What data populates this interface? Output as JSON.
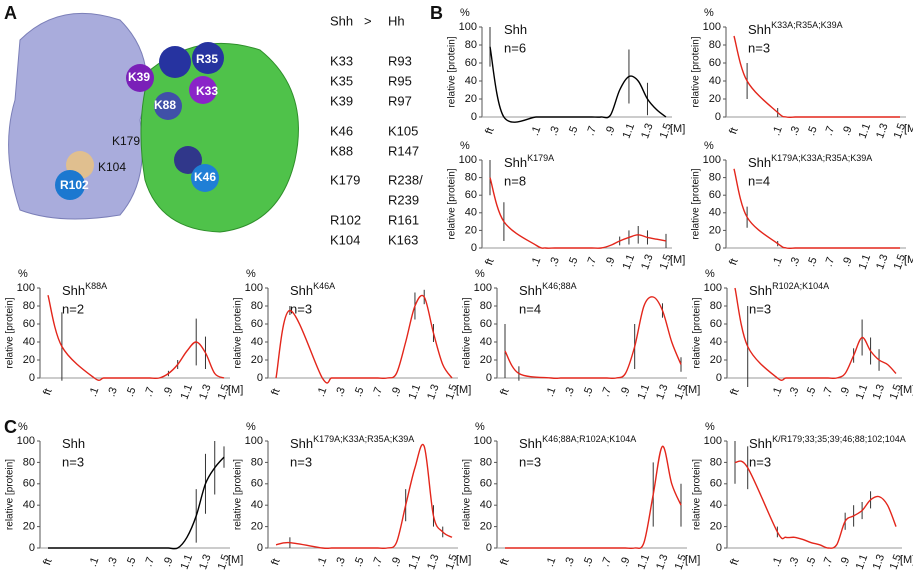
{
  "panel_labels": [
    "A",
    "B",
    "C"
  ],
  "structure_labels": [
    "K39",
    "R35",
    "K33",
    "K88",
    "K179",
    "K104",
    "R102",
    "K46"
  ],
  "residue_table": {
    "header": [
      "Shh",
      ">",
      "Hh"
    ],
    "rows": [
      [
        "K33",
        "R93"
      ],
      [
        "K35",
        "R95"
      ],
      [
        "K39",
        "R97"
      ],
      [
        "K46",
        "K105"
      ],
      [
        "K88",
        "R147"
      ],
      [
        "K179",
        [
          "R238/",
          "R239"
        ]
      ],
      [
        "R102",
        "R161"
      ],
      [
        "K104",
        "K163"
      ]
    ]
  },
  "chart_data": [
    {
      "type": "line",
      "title": "Shh",
      "annotation": "n=6",
      "ylabel": "relative [protein]",
      "yunit": "%",
      "xunit": "[M]",
      "color": "#000000",
      "categories": [
        "ft",
        null,
        ".1",
        null,
        ".3",
        null,
        ".5",
        null,
        ".7",
        null,
        ".9",
        null,
        "1.1",
        null,
        "1.3",
        null,
        "1.5"
      ],
      "values": [
        78,
        0,
        0,
        0,
        0,
        0,
        0,
        0,
        0,
        0,
        2,
        30,
        45,
        40,
        20,
        8,
        0
      ],
      "errors": [
        22,
        null,
        null,
        null,
        null,
        null,
        null,
        null,
        null,
        null,
        null,
        null,
        30,
        null,
        18,
        null,
        null
      ],
      "ylim": [
        0,
        100
      ],
      "yticks": [
        0,
        20,
        40,
        60,
        80,
        100
      ]
    },
    {
      "type": "line",
      "title": "Shh",
      "title_sup": "K33A;R35A;K39A",
      "annotation": "n=3",
      "ylabel": "relative [protein]",
      "yunit": "%",
      "xunit": "[M]",
      "color": "#e3261b",
      "categories": [
        "ft",
        null,
        ".1",
        null,
        ".3",
        null,
        ".5",
        null,
        ".7",
        null,
        ".9",
        null,
        "1.1",
        null,
        "1.3",
        null,
        "1.5"
      ],
      "values": [
        90,
        40,
        5,
        0,
        0,
        0,
        0,
        0,
        0,
        0,
        0,
        0,
        0,
        0,
        0,
        0,
        0
      ],
      "errors": [
        null,
        20,
        5,
        null,
        null,
        null,
        null,
        null,
        null,
        null,
        null,
        null,
        null,
        null,
        null,
        null,
        null
      ],
      "ylim": [
        0,
        100
      ],
      "yticks": [
        0,
        20,
        40,
        60,
        80,
        100
      ]
    },
    {
      "type": "line",
      "title": "Shh",
      "title_sup": "K179A",
      "annotation": "n=8",
      "ylabel": "relative [protein]",
      "yunit": "%",
      "xunit": "[M]",
      "color": "#e3261b",
      "categories": [
        "ft",
        null,
        ".1",
        null,
        ".3",
        null,
        ".5",
        null,
        ".7",
        null,
        ".9",
        null,
        "1.1",
        null,
        "1.3",
        null,
        "1.5"
      ],
      "values": [
        80,
        30,
        3,
        0,
        0,
        0,
        0,
        0,
        0,
        0,
        3,
        8,
        12,
        15,
        12,
        10,
        8
      ],
      "errors": [
        20,
        22,
        null,
        null,
        null,
        null,
        null,
        null,
        null,
        null,
        null,
        5,
        8,
        10,
        8,
        null,
        8
      ],
      "ylim": [
        0,
        100
      ],
      "yticks": [
        0,
        20,
        40,
        60,
        80,
        100
      ]
    },
    {
      "type": "line",
      "title": "Shh",
      "title_sup": "K179A;K33A;R35A;K39A",
      "annotation": "n=4",
      "ylabel": "relative [protein]",
      "yunit": "%",
      "xunit": "[M]",
      "color": "#e3261b",
      "categories": [
        "ft",
        null,
        ".1",
        null,
        ".3",
        null,
        ".5",
        null,
        ".7",
        null,
        ".9",
        null,
        "1.1",
        null,
        "1.3",
        null,
        "1.5"
      ],
      "values": [
        90,
        35,
        5,
        0,
        0,
        0,
        0,
        0,
        0,
        0,
        0,
        0,
        0,
        0,
        0,
        0,
        0
      ],
      "errors": [
        null,
        12,
        3,
        null,
        null,
        null,
        null,
        null,
        null,
        null,
        null,
        null,
        null,
        null,
        null,
        null,
        null
      ],
      "ylim": [
        0,
        100
      ],
      "yticks": [
        0,
        20,
        40,
        60,
        80,
        100
      ]
    },
    {
      "type": "line",
      "title": "Shh",
      "title_sup": "K88A",
      "annotation": "n=2",
      "ylabel": "relative [protein]",
      "yunit": "%",
      "xunit": "[M]",
      "color": "#e3261b",
      "categories": [
        "ft",
        null,
        ".1",
        null,
        ".3",
        null,
        ".5",
        null,
        ".7",
        null,
        ".9",
        null,
        "1.1",
        null,
        "1.3",
        null,
        "1.5"
      ],
      "values": [
        92,
        35,
        0,
        0,
        0,
        0,
        0,
        0,
        0,
        0,
        5,
        15,
        30,
        40,
        28,
        5,
        0
      ],
      "errors": [
        null,
        38,
        null,
        null,
        null,
        null,
        null,
        null,
        null,
        null,
        3,
        5,
        null,
        26,
        18,
        null,
        null
      ],
      "ylim": [
        0,
        100
      ],
      "yticks": [
        0,
        20,
        40,
        60,
        80,
        100
      ]
    },
    {
      "type": "line",
      "title": "Shh",
      "title_sup": "K46A",
      "annotation": "n=3",
      "ylabel": "relative [protein]",
      "yunit": "%",
      "xunit": "[M]",
      "color": "#e3261b",
      "categories": [
        "ft",
        null,
        ".1",
        null,
        ".3",
        null,
        ".5",
        null,
        ".7",
        null,
        ".9",
        null,
        "1.1",
        null,
        "1.3",
        null,
        "1.5"
      ],
      "values": [
        0,
        75,
        0,
        0,
        0,
        0,
        0,
        0,
        0,
        0,
        5,
        40,
        80,
        90,
        50,
        15,
        0
      ],
      "errors": [
        null,
        5,
        null,
        null,
        null,
        null,
        null,
        null,
        null,
        null,
        null,
        null,
        15,
        8,
        10,
        null,
        null
      ],
      "ylim": [
        0,
        100
      ],
      "yticks": [
        0,
        20,
        40,
        60,
        80,
        100
      ]
    },
    {
      "type": "line",
      "title": "Shh",
      "title_sup": "K46;88A",
      "annotation": "n=4",
      "ylabel": "relative [protein]",
      "yunit": "%",
      "xunit": "[M]",
      "color": "#e3261b",
      "categories": [
        "ft",
        null,
        ".1",
        null,
        ".3",
        null,
        ".5",
        null,
        ".7",
        null,
        ".9",
        null,
        "1.1",
        null,
        "1.3",
        null,
        "1.5"
      ],
      "values": [
        30,
        5,
        0,
        0,
        0,
        0,
        0,
        0,
        0,
        0,
        5,
        35,
        80,
        90,
        75,
        40,
        15
      ],
      "errors": [
        30,
        8,
        null,
        null,
        null,
        null,
        null,
        null,
        null,
        null,
        null,
        25,
        null,
        null,
        8,
        null,
        8
      ],
      "ylim": [
        0,
        100
      ],
      "yticks": [
        0,
        20,
        40,
        60,
        80,
        100
      ]
    },
    {
      "type": "line",
      "title": "Shh",
      "title_sup": "R102A;K104A",
      "annotation": "n=3",
      "ylabel": "relative [protein]",
      "yunit": "%",
      "xunit": "[M]",
      "color": "#e3261b",
      "categories": [
        "ft",
        null,
        ".1",
        null,
        ".3",
        null,
        ".5",
        null,
        ".7",
        null,
        ".9",
        null,
        "1.1",
        null,
        "1.3",
        null,
        "1.5"
      ],
      "values": [
        100,
        35,
        0,
        0,
        0,
        0,
        0,
        0,
        0,
        0,
        5,
        25,
        45,
        30,
        20,
        15,
        5
      ],
      "errors": [
        null,
        45,
        null,
        null,
        null,
        null,
        null,
        null,
        null,
        null,
        null,
        8,
        20,
        15,
        12,
        null,
        null
      ],
      "ylim": [
        0,
        100
      ],
      "yticks": [
        0,
        20,
        40,
        60,
        80,
        100
      ]
    },
    {
      "type": "line",
      "title": "Shh",
      "annotation": "n=3",
      "ylabel": "relative [protein]",
      "yunit": "%",
      "xunit": "[M]",
      "color": "#000000",
      "categories": [
        "ft",
        null,
        ".1",
        null,
        ".3",
        null,
        ".5",
        null,
        ".7",
        null,
        ".9",
        null,
        "1.1",
        null,
        "1.3",
        null,
        "1.5"
      ],
      "values": [
        0,
        0,
        0,
        0,
        0,
        0,
        0,
        0,
        0,
        0,
        0,
        0,
        10,
        30,
        60,
        75,
        85
      ],
      "errors": [
        null,
        null,
        null,
        null,
        null,
        null,
        null,
        null,
        null,
        null,
        null,
        null,
        null,
        25,
        28,
        25,
        10
      ],
      "ylim": [
        0,
        100
      ],
      "yticks": [
        0,
        20,
        40,
        60,
        80,
        100
      ]
    },
    {
      "type": "line",
      "title": "Shh",
      "title_sup": "K179A;K33A;R35A;K39A",
      "annotation": "n=3",
      "ylabel": "relative [protein]",
      "yunit": "%",
      "xunit": "[M]",
      "color": "#e3261b",
      "categories": [
        "ft",
        null,
        ".1",
        null,
        ".3",
        null,
        ".5",
        null,
        ".7",
        null,
        ".9",
        null,
        "1.1",
        null,
        "1.3",
        null,
        "1.5"
      ],
      "values": [
        3,
        5,
        0,
        0,
        0,
        0,
        0,
        0,
        0,
        0,
        5,
        40,
        75,
        95,
        30,
        15,
        10
      ],
      "errors": [
        null,
        5,
        null,
        null,
        null,
        null,
        null,
        null,
        null,
        null,
        null,
        15,
        null,
        null,
        10,
        5,
        null
      ],
      "ylim": [
        0,
        100
      ],
      "yticks": [
        0,
        20,
        40,
        60,
        80,
        100
      ]
    },
    {
      "type": "line",
      "title": "Shh",
      "title_sup": "K46;88A;R102A;K104A",
      "annotation": "n=3",
      "ylabel": "relative [protein]",
      "yunit": "%",
      "xunit": "[M]",
      "color": "#e3261b",
      "categories": [
        "ft",
        null,
        ".1",
        null,
        ".3",
        null,
        ".5",
        null,
        ".7",
        null,
        ".9",
        null,
        "1.1",
        null,
        "1.3",
        null,
        "1.5"
      ],
      "values": [
        0,
        0,
        0,
        0,
        0,
        0,
        0,
        0,
        0,
        0,
        0,
        0,
        5,
        50,
        95,
        60,
        40
      ],
      "errors": [
        null,
        null,
        null,
        null,
        null,
        null,
        null,
        null,
        null,
        null,
        null,
        null,
        null,
        30,
        null,
        null,
        20
      ],
      "ylim": [
        0,
        100
      ],
      "yticks": [
        0,
        20,
        40,
        60,
        80,
        100
      ]
    },
    {
      "type": "line",
      "title": "Shh",
      "title_sup": "K/R179;33;35;39;46;88;102;104A",
      "annotation": "n=3",
      "ylabel": "relative [protein]",
      "yunit": "%",
      "xunit": "[M]",
      "color": "#e3261b",
      "categories": [
        "ft",
        null,
        ".1",
        null,
        ".3",
        null,
        ".5",
        null,
        ".7",
        null,
        ".9",
        null,
        "1.1",
        null,
        "1.3",
        null,
        "1.5"
      ],
      "values": [
        80,
        75,
        15,
        10,
        10,
        8,
        5,
        3,
        0,
        3,
        25,
        30,
        35,
        45,
        48,
        40,
        20
      ],
      "errors": [
        20,
        20,
        5,
        null,
        null,
        null,
        null,
        null,
        null,
        null,
        8,
        10,
        8,
        8,
        null,
        null,
        null
      ],
      "ylim": [
        0,
        100
      ],
      "yticks": [
        0,
        20,
        40,
        60,
        80,
        100
      ]
    }
  ]
}
